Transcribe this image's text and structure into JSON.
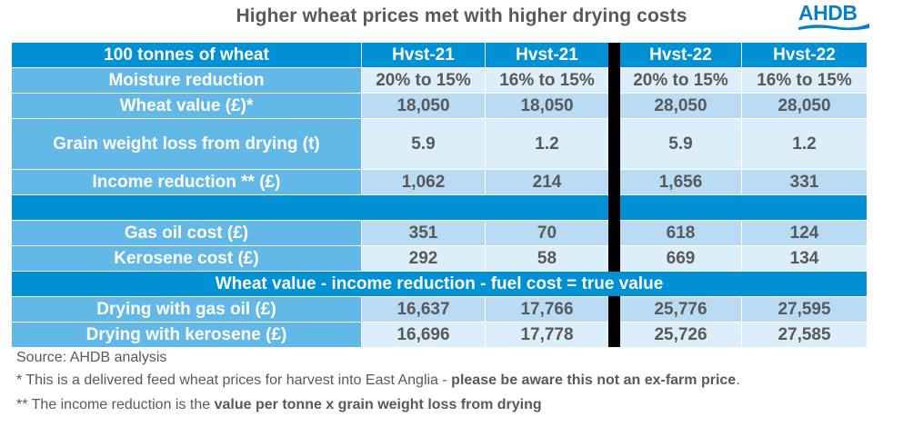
{
  "title": "Higher wheat prices met with higher drying costs",
  "logo": {
    "text": "AHDB",
    "color": "#0a7fc4"
  },
  "colors": {
    "header": "#0090d4",
    "label_bg": "#62b8e6",
    "value_dark": "#b9dbf4",
    "value_light": "#ddeefb",
    "divider": "#000000"
  },
  "table": {
    "header": {
      "label": "100 tonnes of wheat",
      "cols": [
        "Hvst-21",
        "Hvst-21",
        "Hvst-22",
        "Hvst-22"
      ]
    },
    "rows": [
      {
        "label": "Moisture reduction",
        "values": [
          "20% to 15%",
          "16% to 15%",
          "20% to 15%",
          "16% to 15%"
        ]
      },
      {
        "label": "Wheat value (£)*",
        "values": [
          "18,050",
          "18,050",
          "28,050",
          "28,050"
        ]
      },
      {
        "label": "Grain weight loss from drying (t)",
        "values": [
          "5.9",
          "1.2",
          "5.9",
          "1.2"
        ]
      },
      {
        "label": "Income reduction ** (£)",
        "values": [
          "1,062",
          "214",
          "1,656",
          "331"
        ]
      },
      {
        "label": "Gas oil cost (£)",
        "values": [
          "351",
          "70",
          "618",
          "124"
        ]
      },
      {
        "label": "Kerosene cost (£)",
        "values": [
          "292",
          "58",
          "669",
          "134"
        ]
      },
      {
        "label": "Drying with gas oil (£)",
        "values": [
          "16,637",
          "17,766",
          "25,776",
          "27,595"
        ]
      },
      {
        "label": "Drying with kerosene (£)",
        "values": [
          "16,696",
          "17,778",
          "25,726",
          "27,585"
        ]
      }
    ],
    "formula_band": "Wheat value - income reduction - fuel cost = true value"
  },
  "notes": {
    "source": "Source: AHDB analysis",
    "note1_plain": "* This is a delivered feed wheat prices for harvest into East Anglia - ",
    "note1_bold": "please be aware this not an ex-farm price",
    "note1_end": ".",
    "note2_plain": "** The income reduction is the ",
    "note2_bold": "value per tonne x grain weight loss from drying"
  }
}
